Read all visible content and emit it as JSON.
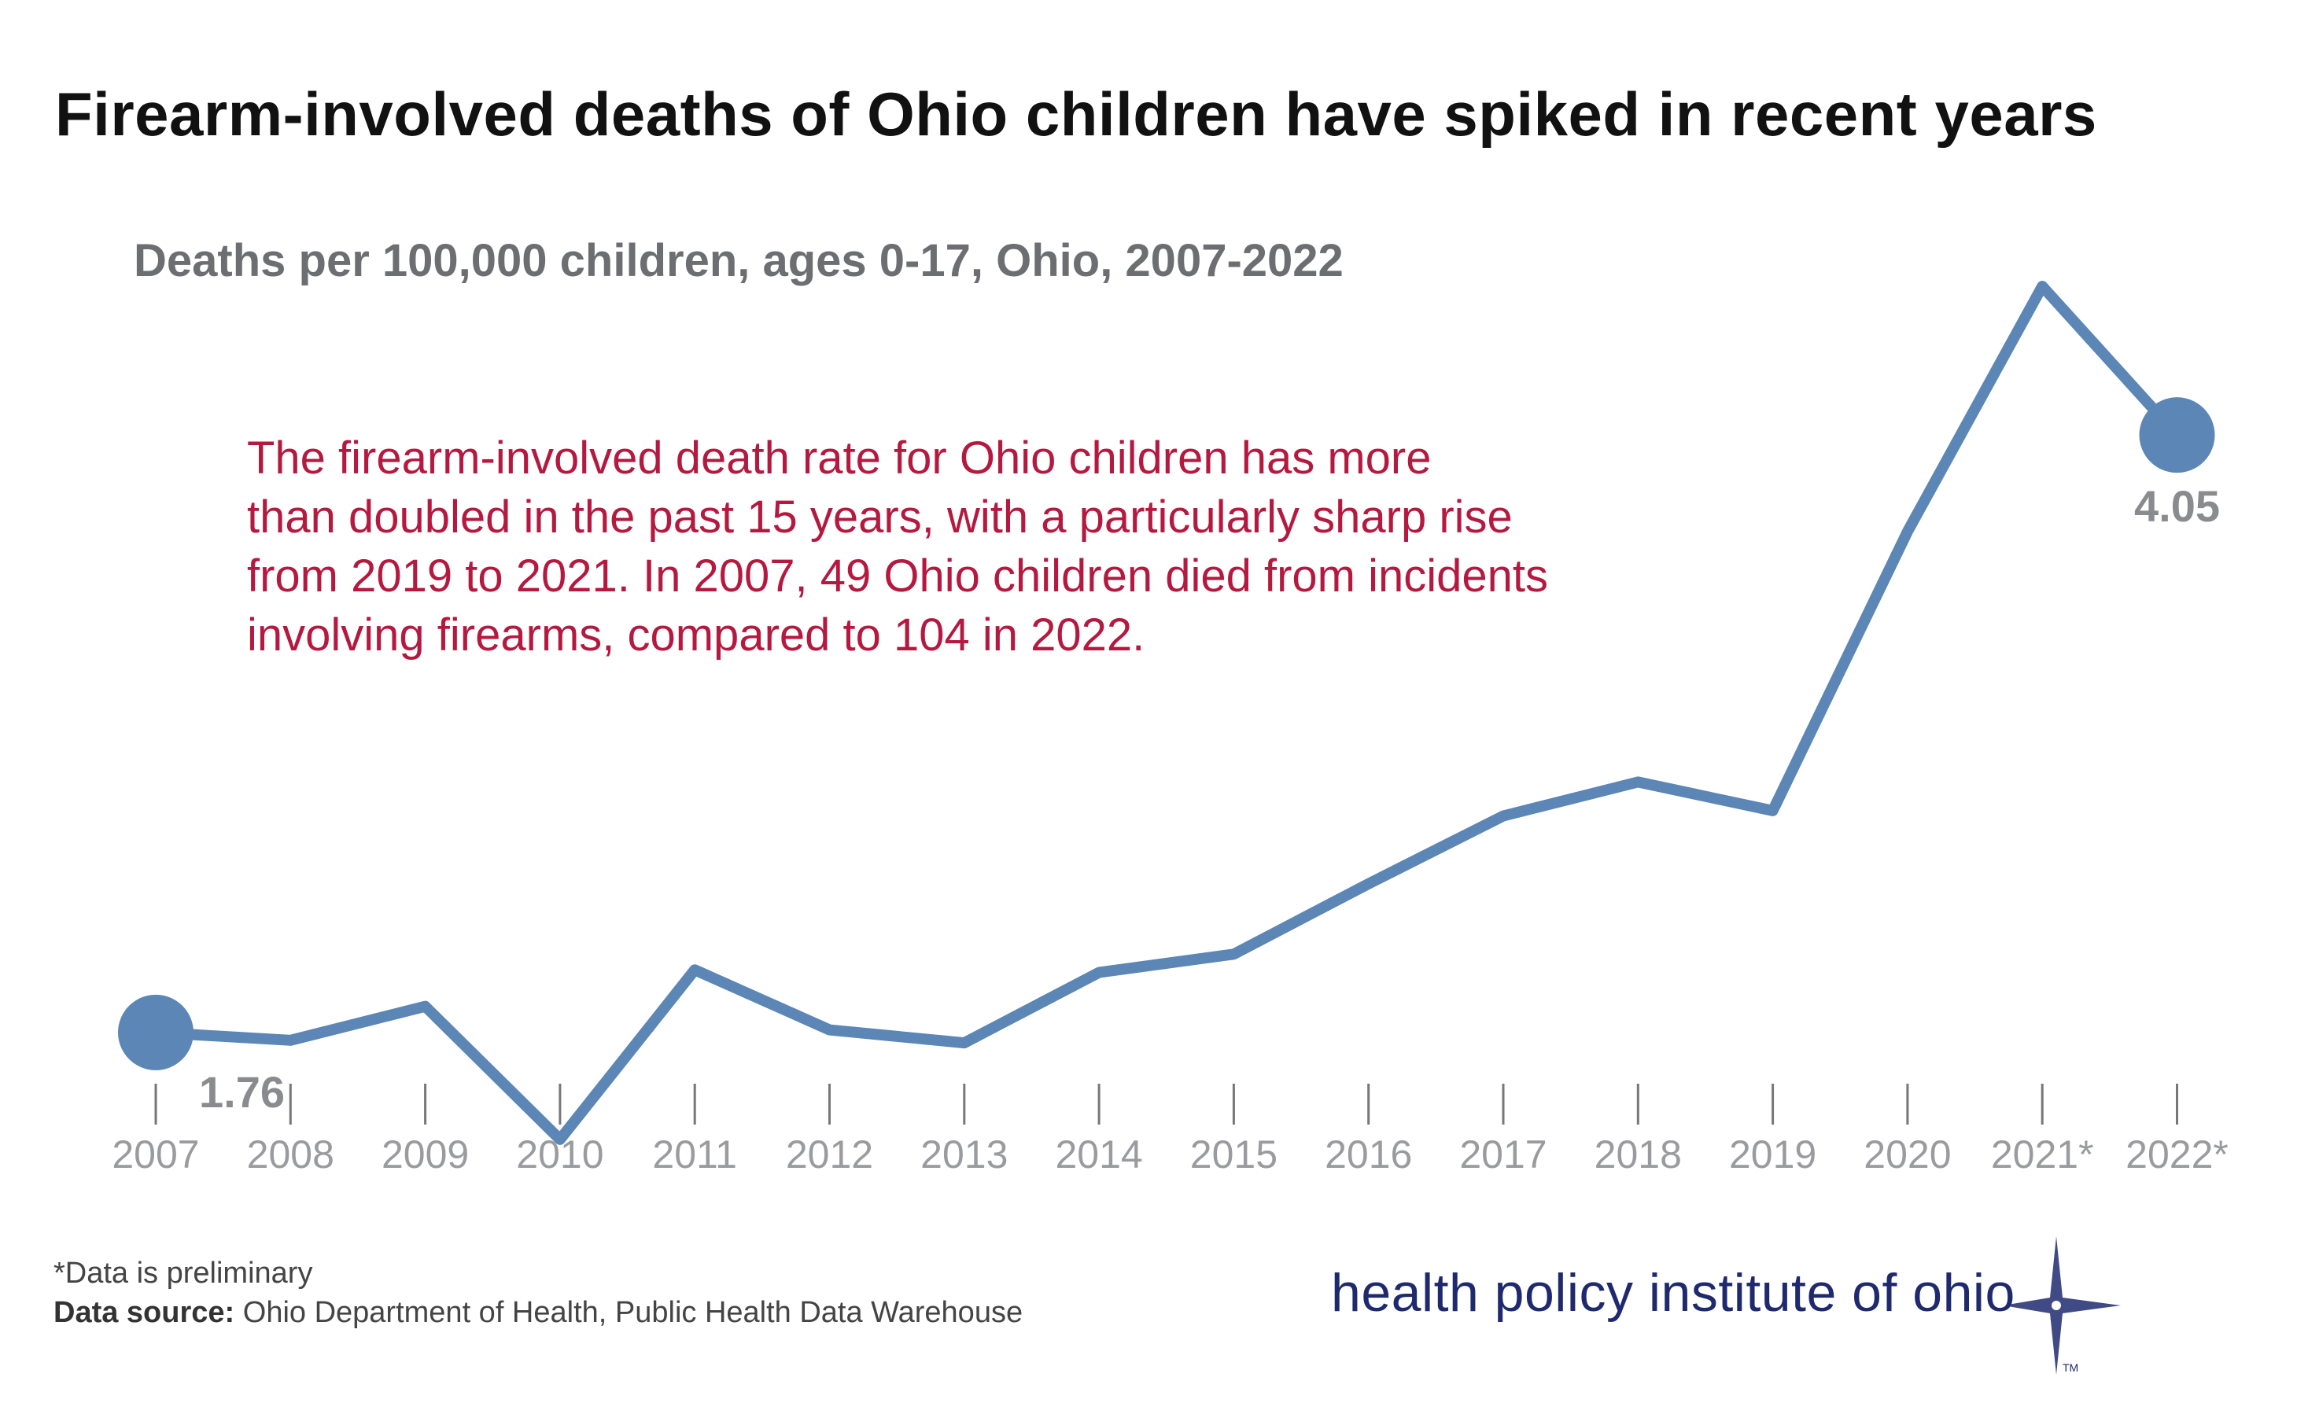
{
  "chart_data": {
    "type": "line",
    "title": "Firearm-involved deaths of Ohio children have spiked in recent years",
    "subtitle": "Deaths per 100,000 children, ages 0-17, Ohio, 2007-2022",
    "categories": [
      "2007",
      "2008",
      "2009",
      "2010",
      "2011",
      "2012",
      "2013",
      "2014",
      "2015",
      "2016",
      "2017",
      "2018",
      "2019",
      "2020",
      "2021*",
      "2022*"
    ],
    "series": [
      {
        "name": "Deaths per 100,000 children",
        "values": [
          1.76,
          1.73,
          1.86,
          1.35,
          2.0,
          1.77,
          1.72,
          1.99,
          2.06,
          2.33,
          2.59,
          2.72,
          2.61,
          3.68,
          4.62,
          4.05
        ],
        "color": "#5b86b5"
      }
    ],
    "end_labels": {
      "start": "1.76",
      "end": "4.05"
    },
    "ylim": [
      1.0,
      5.0
    ],
    "xlabel": "",
    "ylabel": "",
    "grid": false,
    "annotation": "The firearm-involved death rate for Ohio children has more\nthan doubled in the past 15 years, with a particularly sharp rise\nfrom 2019 to 2021. In 2007, 49 Ohio children died from incidents\ninvolving firearms, compared to 104 in 2022."
  },
  "footer": {
    "note": "*Data is preliminary",
    "source_label": "Data source:",
    "source_text": " Ohio Department of Health, Public Health Data Warehouse",
    "logo_text": "health policy institute of ohio",
    "logo_tm": "TM"
  },
  "colors": {
    "line": "#5b86b5",
    "annotation": "#b5193f",
    "logo": "#1f2a6e"
  }
}
